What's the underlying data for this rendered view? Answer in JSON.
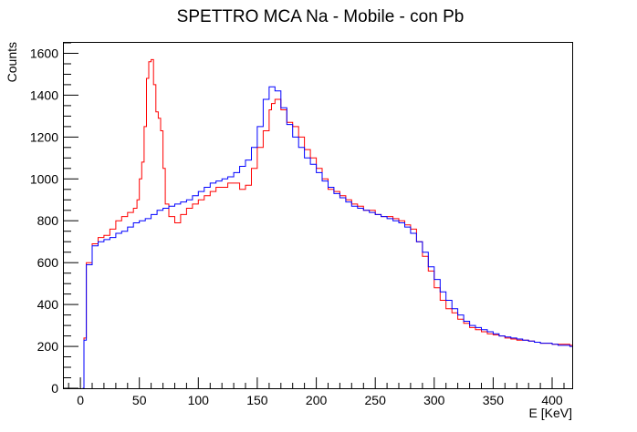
{
  "chart_data": {
    "type": "line",
    "title": "SPETTRO MCA Na - Mobile - con Pb",
    "xlabel": "E [KeV]",
    "ylabel": "Counts",
    "xlim": [
      -14,
      417
    ],
    "ylim": [
      0,
      1650
    ],
    "xticks": [
      "0",
      "50",
      "100",
      "150",
      "200",
      "250",
      "300",
      "350",
      "400"
    ],
    "yticks": [
      "0",
      "200",
      "400",
      "600",
      "800",
      "1000",
      "1200",
      "1400",
      "1600"
    ],
    "grid": false,
    "legend": "none",
    "series": [
      {
        "color": "#ff0000",
        "x": [
          2,
          3,
          5,
          10,
          15,
          20,
          25,
          30,
          35,
          40,
          45,
          48,
          50,
          52,
          54,
          56,
          58,
          60,
          62,
          64,
          66,
          68,
          70,
          72,
          75,
          80,
          85,
          90,
          95,
          100,
          105,
          110,
          115,
          120,
          125,
          130,
          135,
          140,
          145,
          150,
          155,
          160,
          162,
          165,
          170,
          175,
          180,
          185,
          190,
          195,
          200,
          205,
          210,
          215,
          220,
          225,
          230,
          235,
          240,
          245,
          250,
          255,
          260,
          265,
          270,
          275,
          280,
          285,
          290,
          295,
          300,
          305,
          310,
          315,
          320,
          325,
          330,
          335,
          340,
          345,
          350,
          355,
          360,
          365,
          370,
          375,
          380,
          385,
          390,
          395,
          400,
          405,
          410,
          415
        ],
        "y": [
          0,
          240,
          600,
          690,
          720,
          730,
          760,
          800,
          820,
          840,
          860,
          900,
          1000,
          1080,
          1250,
          1480,
          1560,
          1570,
          1450,
          1320,
          1290,
          1230,
          1050,
          880,
          820,
          790,
          830,
          860,
          880,
          900,
          920,
          940,
          960,
          960,
          980,
          980,
          950,
          970,
          1050,
          1150,
          1230,
          1330,
          1360,
          1380,
          1330,
          1270,
          1250,
          1200,
          1140,
          1100,
          1050,
          1000,
          950,
          940,
          920,
          900,
          880,
          870,
          850,
          850,
          830,
          820,
          820,
          810,
          800,
          780,
          760,
          700,
          630,
          560,
          480,
          420,
          380,
          360,
          330,
          310,
          290,
          280,
          270,
          260,
          255,
          250,
          240,
          235,
          230,
          230,
          225,
          220,
          215,
          215,
          210,
          210,
          210,
          205
        ]
      },
      {
        "color": "#0000ff",
        "x": [
          2,
          3,
          5,
          10,
          15,
          20,
          25,
          30,
          35,
          40,
          45,
          50,
          55,
          60,
          65,
          70,
          75,
          80,
          85,
          90,
          95,
          100,
          105,
          110,
          115,
          120,
          125,
          130,
          135,
          140,
          145,
          150,
          155,
          160,
          165,
          170,
          175,
          180,
          185,
          190,
          195,
          200,
          205,
          210,
          215,
          220,
          225,
          230,
          235,
          240,
          245,
          250,
          255,
          260,
          265,
          270,
          275,
          280,
          285,
          290,
          295,
          300,
          305,
          310,
          315,
          320,
          325,
          330,
          335,
          340,
          345,
          350,
          355,
          360,
          365,
          370,
          375,
          380,
          385,
          390,
          395,
          400,
          405,
          410,
          415
        ],
        "y": [
          0,
          230,
          590,
          680,
          700,
          710,
          720,
          740,
          750,
          770,
          790,
          800,
          810,
          830,
          850,
          860,
          870,
          880,
          890,
          900,
          920,
          940,
          960,
          980,
          990,
          1000,
          1010,
          1030,
          1060,
          1090,
          1150,
          1250,
          1380,
          1440,
          1420,
          1340,
          1260,
          1200,
          1150,
          1100,
          1070,
          1030,
          990,
          960,
          930,
          910,
          890,
          870,
          860,
          850,
          840,
          830,
          820,
          810,
          800,
          790,
          770,
          740,
          700,
          650,
          580,
          520,
          460,
          420,
          380,
          350,
          320,
          300,
          290,
          280,
          270,
          260,
          250,
          245,
          240,
          235,
          230,
          225,
          220,
          215,
          215,
          210,
          205,
          205,
          200
        ]
      }
    ]
  }
}
